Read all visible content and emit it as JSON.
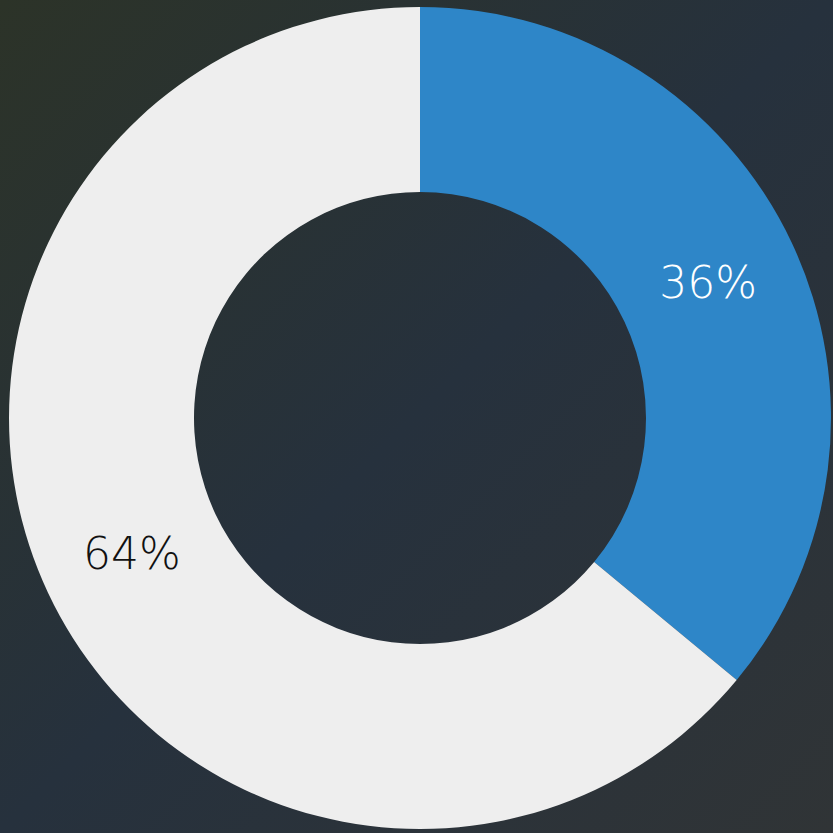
{
  "chart_data": {
    "type": "pie",
    "values": [
      36,
      64
    ],
    "value_labels": [
      "36%",
      "64%"
    ],
    "colors": [
      "#2e86c8",
      "#eeeeee"
    ],
    "data_labels": true
  }
}
